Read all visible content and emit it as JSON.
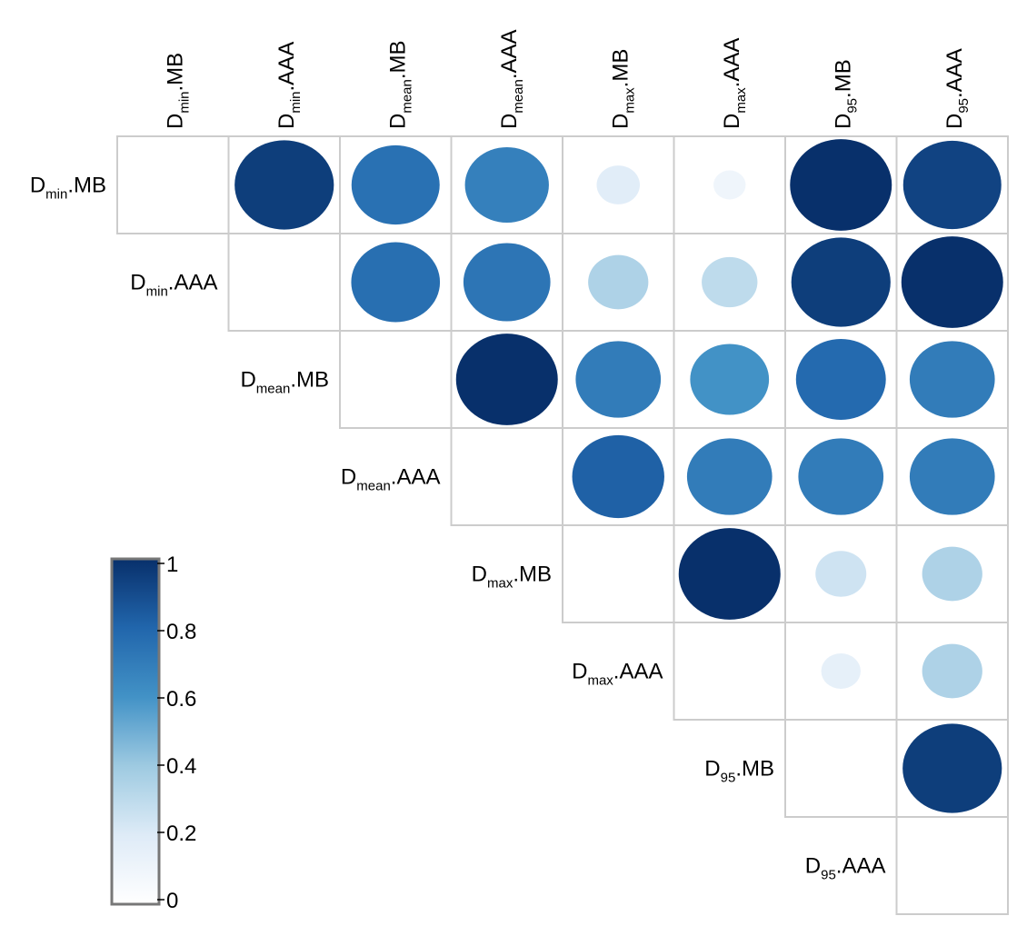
{
  "chart_data": {
    "type": "heatmap",
    "subtype": "correlation-circles-upper-triangle",
    "variables": [
      {
        "base": "D",
        "sub": "min",
        "suffix": ".MB"
      },
      {
        "base": "D",
        "sub": "min",
        "suffix": ".AAA"
      },
      {
        "base": "D",
        "sub": "mean",
        "suffix": ".MB"
      },
      {
        "base": "D",
        "sub": "mean",
        "suffix": ".AAA"
      },
      {
        "base": "D",
        "sub": "max",
        "suffix": ".MB"
      },
      {
        "base": "D",
        "sub": "max",
        "suffix": ".AAA"
      },
      {
        "base": "D",
        "sub": "95",
        "suffix": ".MB"
      },
      {
        "base": "D",
        "sub": "95",
        "suffix": ".AAA"
      }
    ],
    "matrix": [
      [
        null,
        0.95,
        0.75,
        0.68,
        0.18,
        0.1,
        1.0,
        0.93
      ],
      [
        null,
        null,
        0.76,
        0.73,
        0.35,
        0.3,
        0.95,
        1.0
      ],
      [
        null,
        null,
        null,
        1.0,
        0.7,
        0.6,
        0.78,
        0.7
      ],
      [
        null,
        null,
        null,
        null,
        0.82,
        0.7,
        0.7,
        0.7
      ],
      [
        null,
        null,
        null,
        null,
        null,
        1.0,
        0.25,
        0.35
      ],
      [
        null,
        null,
        null,
        null,
        null,
        null,
        0.15,
        0.35
      ],
      [
        null,
        null,
        null,
        null,
        null,
        null,
        null,
        0.95
      ],
      [
        null,
        null,
        null,
        null,
        null,
        null,
        null,
        null
      ]
    ],
    "colorbar": {
      "min": 0,
      "max": 1,
      "ticks": [
        "1",
        "0.8",
        "0.6",
        "0.4",
        "0.2",
        "0"
      ]
    },
    "colors": {
      "low": "#ffffff",
      "mid": "#9ecae1",
      "high": "#08306b",
      "grid": "#cccccc"
    }
  }
}
